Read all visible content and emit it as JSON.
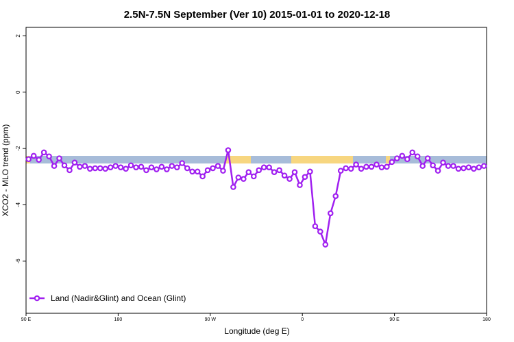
{
  "chart_data": {
    "type": "line",
    "title": "2.5N-7.5N September (Ver 10)   2015-01-01 to 2020-12-18",
    "x_label": "Longitude (deg E)",
    "y_label": "XCO2 - MLO trend (ppm)",
    "x": [
      92.5,
      97.5,
      102.5,
      107.5,
      112.5,
      117.5,
      122.5,
      127.5,
      132.5,
      137.5,
      142.5,
      147.5,
      152.5,
      157.5,
      162.5,
      167.5,
      172.5,
      177.5,
      182.5,
      187.5,
      192.5,
      197.5,
      202.5,
      207.5,
      212.5,
      217.5,
      222.5,
      227.5,
      232.5,
      237.5,
      242.5,
      247.5,
      252.5,
      257.5,
      262.5,
      267.5,
      272.5,
      277.5,
      282.5,
      287.5,
      292.5,
      297.5,
      302.5,
      307.5,
      312.5,
      317.5,
      322.5,
      327.5,
      332.5,
      337.5,
      342.5,
      347.5,
      352.5,
      357.5,
      362.5,
      367.5,
      372.5,
      377.5,
      382.5,
      387.5,
      392.5,
      397.5,
      402.5,
      407.5,
      412.5,
      417.5,
      422.5,
      427.5,
      432.5,
      437.5,
      442.5,
      447.5,
      452.5,
      457.5,
      462.5,
      467.5,
      472.5,
      477.5,
      482.5,
      487.5,
      492.5,
      497.5,
      502.5,
      507.5,
      512.5,
      517.5,
      522.5,
      527.5,
      532.5,
      537.5
    ],
    "series": [
      {
        "name": "Land (Nadir&Glint) and Ocean (Glint)",
        "color": "#a020f0",
        "values": [
          -2.38,
          -2.26,
          -2.4,
          -2.14,
          -2.28,
          -2.62,
          -2.35,
          -2.6,
          -2.77,
          -2.5,
          -2.65,
          -2.62,
          -2.72,
          -2.7,
          -2.7,
          -2.72,
          -2.67,
          -2.62,
          -2.67,
          -2.72,
          -2.6,
          -2.67,
          -2.65,
          -2.77,
          -2.67,
          -2.74,
          -2.65,
          -2.74,
          -2.62,
          -2.67,
          -2.52,
          -2.7,
          -2.82,
          -2.82,
          -2.99,
          -2.77,
          -2.7,
          -2.62,
          -2.79,
          -2.06,
          -3.37,
          -3.03,
          -3.08,
          -2.84,
          -2.99,
          -2.77,
          -2.67,
          -2.67,
          -2.84,
          -2.77,
          -2.96,
          -3.08,
          -2.84,
          -3.3,
          -3.01,
          -2.82,
          -4.76,
          -4.95,
          -5.41,
          -4.3,
          -3.69,
          -2.79,
          -2.7,
          -2.72,
          -2.57,
          -2.72,
          -2.65,
          -2.65,
          -2.57,
          -2.67,
          -2.65,
          -2.48,
          -2.35,
          -2.26,
          -2.38,
          -2.14,
          -2.28,
          -2.62,
          -2.35,
          -2.6,
          -2.79,
          -2.5,
          -2.62,
          -2.62,
          -2.72,
          -2.7,
          -2.67,
          -2.72,
          -2.67,
          -2.62
        ]
      }
    ],
    "xlim": [
      90,
      540
    ],
    "xticks": [
      {
        "value": 90,
        "label": "90 E"
      },
      {
        "value": 180,
        "label": "180"
      },
      {
        "value": 270,
        "label": "90 W"
      },
      {
        "value": 360,
        "label": "0"
      },
      {
        "value": 450,
        "label": "90 E"
      },
      {
        "value": 540,
        "label": "180"
      }
    ],
    "ylim": [
      -7.85,
      2.3
    ],
    "yticks": [
      2,
      0,
      -2,
      -4,
      -6
    ],
    "legend": "bottom-left"
  }
}
